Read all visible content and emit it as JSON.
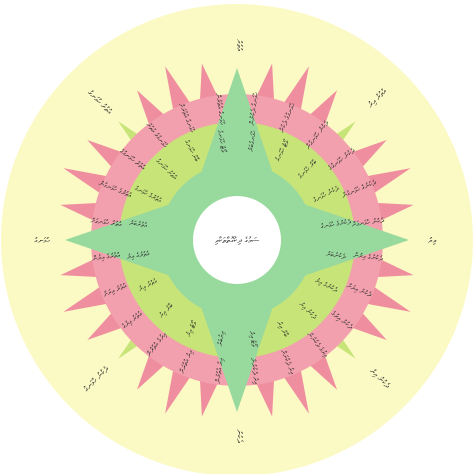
{
  "diagram": {
    "center_label": "ސަމުގެ ދިކުގޮތްތަކާއި",
    "cardinal_labels": {
      "north": "އުތުރު",
      "east": "އިރު",
      "south": "ދެކުނު",
      "west": "ހުޅަނގު"
    },
    "intercardinal_labels": {
      "northeast": "އުތުރު އިރު",
      "southeast": "ދެކުނު އިރު",
      "southwest": "ދެކުނު ހުޅަނގު",
      "northwest": "އުތުރު ހުޅަނގު"
    },
    "inner_ring_labels": [
      "ހުޅަނގުބަރު",
      "ވޯޓު ހުޅަނގު",
      "ބާރު ހުޅަނގު",
      "ދެކުނު ހުޅަނގު",
      "ދެކުނުގެ ހުޅަނގު",
      "ދެކުނުބަރު",
      "ދެކުނުގެ އިރު",
      "ދެކުނު އިރު",
      "ބާރު އިރު",
      "ވޯޓު އިރު",
      "އިރުބަރު",
      "ވޯޓު އިރު",
      "ބާރު އިރު",
      "އުތުރު އިރު",
      "އުތުރުގެ އިރު",
      "އުތުރުބަރު",
      "އުތުރުގެ ހުޅަނގު",
      "އުތުރު ހުޅަނގު",
      "ބާރު ހުޅަނގު",
      "ވޯޓު ހުޅަނގު"
    ],
    "outer_ring_labels": [
      "ހުޅަނގު ދެކުނުން",
      "ހުޅަނގުގެ ދެކުނު",
      "ދެކުނު ހުޅަނގުން",
      "ދެކުނު ހުޅަނގުގެ",
      "ދެކުނުގެ ހުޅަނގުން",
      "ދެކުނު ހުޅަނގަށް",
      "ދެކުނުގެ އިރުން",
      "ދެކުނު އިރަށް",
      "ދެކުނު އިރުގެ",
      "އިރުގެ ދެކުނުން",
      "އިރު ދެކުނަށް",
      "އިރު ދެކުނުން",
      "އިރު އުތުރުން",
      "އިރު އުތުރަށް",
      "އިރުގެ އުތުރުން",
      "އުތުރު އިރުގެ",
      "އުތުރު އިރަށް",
      "އުތުރުގެ އިރުން",
      "އުތުރު ހުޅަނގަށް",
      "އުތުރުގެ ހުޅަނގުން",
      "އުތުރު ހުޅަނގުގެ",
      "ހުޅަނގުގެ އުތުރު",
      "ހުޅަނގު އުތުރަށް",
      "ހުޅަނގު އުތުރުން"
    ],
    "colors": {
      "background": "#fbf9c4",
      "outer_ring": "#f2a0ad",
      "spike": "#ee8e9f",
      "middle_ring": "#c6e477",
      "star": "#98d99e",
      "center_hole": "#ffffff",
      "text": "#2a2a2a"
    }
  }
}
